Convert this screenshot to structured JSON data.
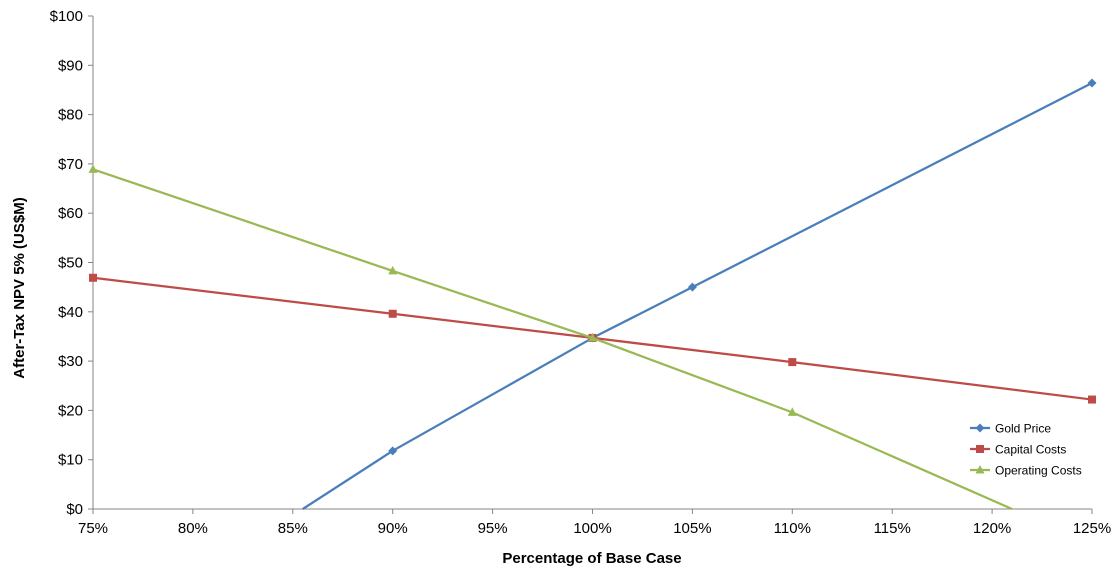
{
  "chart_data": {
    "type": "line",
    "title": "",
    "xlabel": "Percentage of Base Case",
    "ylabel": "After-Tax NPV 5% (US$M)",
    "x": [
      75,
      90,
      100,
      105,
      110,
      125
    ],
    "x_ticks": [
      75,
      80,
      85,
      90,
      95,
      100,
      105,
      110,
      115,
      120,
      125
    ],
    "x_tick_labels": [
      "75%",
      "80%",
      "85%",
      "90%",
      "95%",
      "100%",
      "105%",
      "110%",
      "115%",
      "120%",
      "125%"
    ],
    "y_ticks": [
      0,
      10,
      20,
      30,
      40,
      50,
      60,
      70,
      80,
      90,
      100
    ],
    "y_tick_labels": [
      "$0",
      "$10",
      "$20",
      "$30",
      "$40",
      "$50",
      "$60",
      "$70",
      "$80",
      "$90",
      "$100"
    ],
    "xlim": [
      75,
      125
    ],
    "ylim": [
      0,
      100
    ],
    "grid": false,
    "legend_position": "bottom-right",
    "series": [
      {
        "name": "Gold Price",
        "color": "#4A7EBB",
        "marker": "diamond",
        "points": [
          [
            85.5,
            0
          ],
          [
            90,
            11.8
          ],
          [
            100,
            34.7
          ],
          [
            105,
            45.0
          ],
          [
            125,
            86.4
          ]
        ]
      },
      {
        "name": "Capital Costs",
        "color": "#BE4B48",
        "marker": "square",
        "points": [
          [
            75,
            46.9
          ],
          [
            90,
            39.6
          ],
          [
            100,
            34.7
          ],
          [
            110,
            29.8
          ],
          [
            125,
            22.2
          ]
        ]
      },
      {
        "name": "Operating Costs",
        "color": "#98B954",
        "marker": "triangle",
        "points": [
          [
            75,
            68.9
          ],
          [
            90,
            48.3
          ],
          [
            100,
            34.7
          ],
          [
            110,
            19.6
          ],
          [
            121,
            0
          ]
        ]
      }
    ]
  }
}
